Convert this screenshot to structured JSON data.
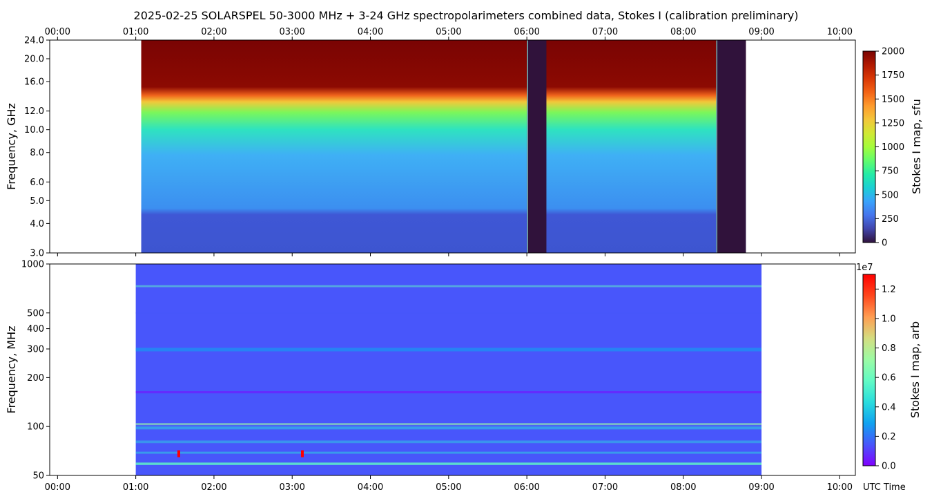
{
  "title": "2025-02-25  SOLARSPEL  50-3000 MHz  +  3-24 GHz  spectropolarimeters combined data,  Stokes I  (calibration preliminary)",
  "time_ticks": [
    "00:00",
    "01:00",
    "02:00",
    "03:00",
    "04:00",
    "05:00",
    "06:00",
    "07:00",
    "08:00",
    "09:00",
    "10:00"
  ],
  "x_unit_label": "UTC Time",
  "colors": {
    "turbo": [
      "#30123b",
      "#4145ab",
      "#4675ed",
      "#39a2fc",
      "#1bcfd4",
      "#24eca6",
      "#61fc6c",
      "#a4fc3b",
      "#d1e834",
      "#f3c63a",
      "#fe9b2d",
      "#f36315",
      "#d93806",
      "#b11901",
      "#7a0403"
    ],
    "rainbow": [
      "#8000ff",
      "#4856fb",
      "#10a2f0",
      "#2adddd",
      "#62fbc4",
      "#9cfba4",
      "#d4dd80",
      "#ff9d52",
      "#ff471d",
      "#ff0000"
    ]
  },
  "chart_data": [
    {
      "type": "heatmap",
      "name": "microwave",
      "y_label": "Frequency, GHz",
      "y_scale": "log",
      "ylim": [
        3.0,
        24.0
      ],
      "y_ticks": [
        "24.0",
        "20.0",
        "16.0",
        "12.0",
        "10.0",
        "8.0",
        "6.0",
        "5.0",
        "4.0",
        "3.0"
      ],
      "y_tick_values": [
        24,
        20,
        16,
        12,
        10,
        8,
        6,
        5,
        4,
        3
      ],
      "xlim_hours": [
        -0.1,
        10.2
      ],
      "data_span_hours": [
        1.07,
        8.8
      ],
      "gap_intervals_hours": [
        [
          6.0,
          6.25
        ],
        [
          8.42,
          8.8
        ]
      ],
      "colorbar": {
        "label": "Stokes I map, sfu",
        "range": [
          0,
          2000
        ],
        "ticks": [
          "2000",
          "1750",
          "1500",
          "1250",
          "1000",
          "750",
          "500",
          "250",
          "0"
        ],
        "tick_values": [
          2000,
          1750,
          1500,
          1250,
          1000,
          750,
          500,
          250,
          0
        ],
        "colormap": "turbo"
      }
    },
    {
      "type": "heatmap",
      "name": "radio",
      "y_label": "Frequency, MHz",
      "y_scale": "log",
      "ylim": [
        50,
        1000
      ],
      "y_ticks": [
        "1000",
        "500",
        "400",
        "300",
        "200",
        "100",
        "50"
      ],
      "y_tick_values": [
        1000,
        500,
        400,
        300,
        200,
        100,
        50
      ],
      "xlim_hours": [
        -0.1,
        10.2
      ],
      "data_span_hours": [
        1.0,
        9.0
      ],
      "bursts": [
        {
          "time": 1.55,
          "freq_mhz": 68
        },
        {
          "time": 3.13,
          "freq_mhz": 68
        }
      ],
      "colorbar": {
        "label": "Stokes I map, arb",
        "range": [
          0.0,
          1.3
        ],
        "ticks": [
          "1.2",
          "1.0",
          "0.8",
          "0.6",
          "0.4",
          "0.2",
          "0.0"
        ],
        "tick_values": [
          1.2,
          1.0,
          0.8,
          0.6,
          0.4,
          0.2,
          0.0
        ],
        "multiplier": "1e7",
        "colormap": "rainbow"
      }
    }
  ]
}
